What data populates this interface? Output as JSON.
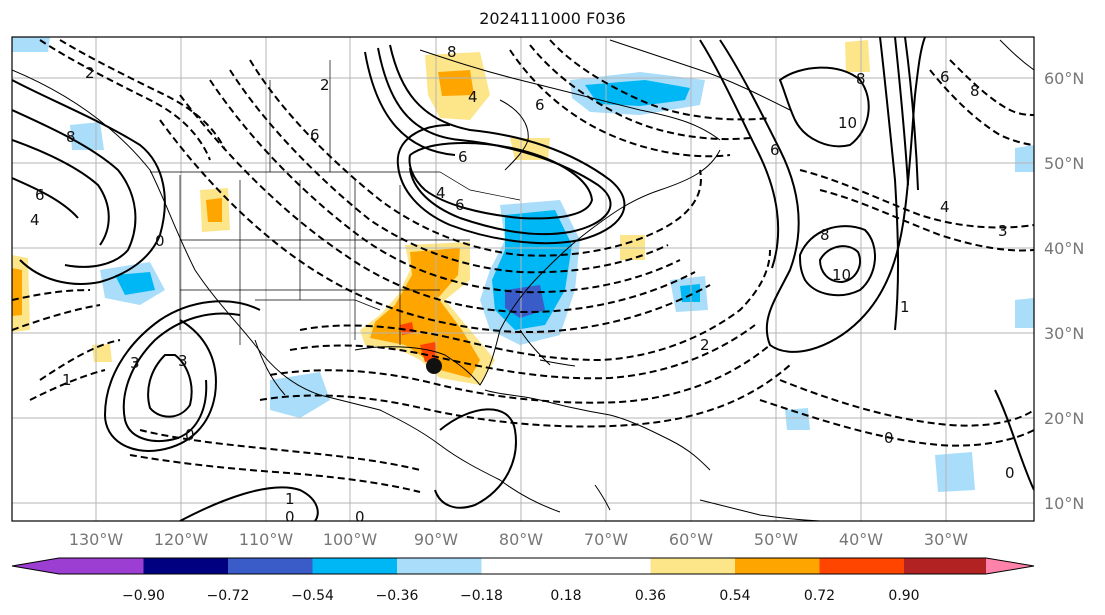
{
  "title": "2024111000 F036",
  "lon_labels": [
    "130°W",
    "120°W",
    "110°W",
    "100°W",
    "90°W",
    "80°W",
    "70°W",
    "60°W",
    "50°W",
    "40°W",
    "30°W"
  ],
  "lat_labels": [
    "60°N",
    "50°N",
    "40°N",
    "30°N",
    "20°N",
    "10°N"
  ],
  "colorbar": {
    "ticks": [
      "−0.90",
      "−0.72",
      "−0.54",
      "−0.36",
      "−0.18",
      "0.18",
      "0.36",
      "0.54",
      "0.72",
      "0.90"
    ],
    "colors": [
      "#9b3ed1",
      "#000080",
      "#3a5cc8",
      "#00b7f5",
      "#a9ddfa",
      "#ffffff",
      "#fde68a",
      "#ffa500",
      "#ff4500",
      "#b22222",
      "#ff82ab"
    ]
  },
  "contour_labels": [
    "8",
    "4",
    "6",
    "2",
    "6",
    "8",
    "2",
    "4",
    "6",
    "0",
    "3",
    "1",
    "3",
    "6",
    "8",
    "10",
    "8",
    "10",
    "6",
    "8",
    "4",
    "3",
    "1",
    "0",
    "1",
    "0",
    "0",
    "0",
    "0",
    "2",
    "4",
    "6",
    "6"
  ],
  "marker": "storm-center-marker"
}
